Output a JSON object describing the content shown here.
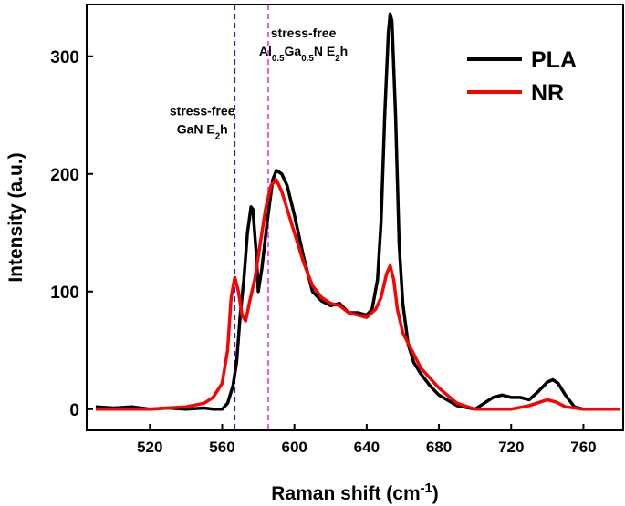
{
  "chart_data": {
    "type": "line",
    "xlabel": [
      {
        "t": "Raman shift (cm"
      },
      {
        "t": "-1",
        "sup": true
      },
      {
        "t": ")"
      }
    ],
    "ylabel": "Intensity (a.u.)",
    "xlim": [
      485,
      782
    ],
    "ylim": [
      -18,
      344
    ],
    "xticks": [
      520,
      560,
      600,
      640,
      680,
      720,
      760
    ],
    "yticks": [
      0,
      100,
      200,
      300
    ],
    "legend": "upper right",
    "series": [
      {
        "name": "PLA",
        "color": "#000000",
        "x": [
          490,
          500,
          510,
          520,
          530,
          540,
          550,
          555,
          560,
          563,
          566,
          568,
          570,
          572,
          574,
          576,
          577,
          579,
          580,
          582,
          585,
          588,
          590,
          593,
          596,
          600,
          605,
          610,
          615,
          620,
          625,
          630,
          635,
          640,
          643,
          646,
          648,
          650,
          652,
          653,
          654,
          656,
          658,
          660,
          663,
          666,
          670,
          675,
          680,
          690,
          700,
          705,
          710,
          715,
          720,
          725,
          730,
          735,
          740,
          743,
          746,
          750,
          755,
          760,
          770,
          780
        ],
        "values": [
          2,
          1,
          2,
          0,
          1,
          0,
          1,
          0,
          0,
          5,
          20,
          40,
          80,
          110,
          150,
          172,
          170,
          130,
          100,
          120,
          160,
          195,
          203,
          200,
          190,
          165,
          130,
          100,
          92,
          88,
          90,
          82,
          82,
          80,
          85,
          110,
          160,
          250,
          320,
          336,
          330,
          250,
          140,
          90,
          55,
          40,
          30,
          20,
          12,
          3,
          0,
          5,
          10,
          12,
          10,
          10,
          8,
          15,
          23,
          25,
          22,
          12,
          2,
          0,
          0,
          0
        ]
      },
      {
        "name": "NR",
        "color": "#ff0000",
        "x": [
          490,
          500,
          510,
          520,
          530,
          540,
          550,
          555,
          560,
          563,
          565,
          567,
          569,
          571,
          573,
          575,
          578,
          581,
          584,
          587,
          590,
          593,
          596,
          600,
          605,
          610,
          615,
          620,
          625,
          630,
          635,
          640,
          645,
          648,
          651,
          653,
          655,
          657,
          660,
          665,
          670,
          680,
          690,
          700,
          710,
          720,
          730,
          740,
          745,
          750,
          760,
          780
        ],
        "values": [
          0,
          0,
          0,
          0,
          1,
          2,
          5,
          10,
          22,
          50,
          95,
          112,
          100,
          80,
          75,
          90,
          110,
          140,
          170,
          190,
          195,
          185,
          170,
          150,
          125,
          105,
          95,
          90,
          88,
          82,
          80,
          78,
          85,
          95,
          115,
          122,
          110,
          85,
          65,
          50,
          35,
          18,
          5,
          0,
          0,
          0,
          3,
          8,
          6,
          2,
          0,
          0
        ]
      }
    ],
    "vlines": [
      {
        "x": 567,
        "color": "#2222cc"
      },
      {
        "x": 585.5,
        "color": "#ee22ee"
      }
    ],
    "annotations": [
      {
        "x": 549,
        "y": 250,
        "lines": [
          [
            {
              "t": "stress-free"
            }
          ],
          [
            {
              "t": "GaN E"
            },
            {
              "t": "2",
              "sub": true
            },
            {
              "t": "h"
            }
          ]
        ]
      },
      {
        "x": 605,
        "y": 316,
        "lines": [
          [
            {
              "t": "stress-free"
            }
          ],
          [
            {
              "t": "Al"
            },
            {
              "t": "0.5",
              "sub": true
            },
            {
              "t": "Ga"
            },
            {
              "t": "0.5",
              "sub": true
            },
            {
              "t": "N E"
            },
            {
              "t": "2",
              "sub": true
            },
            {
              "t": "h"
            }
          ]
        ]
      }
    ]
  }
}
